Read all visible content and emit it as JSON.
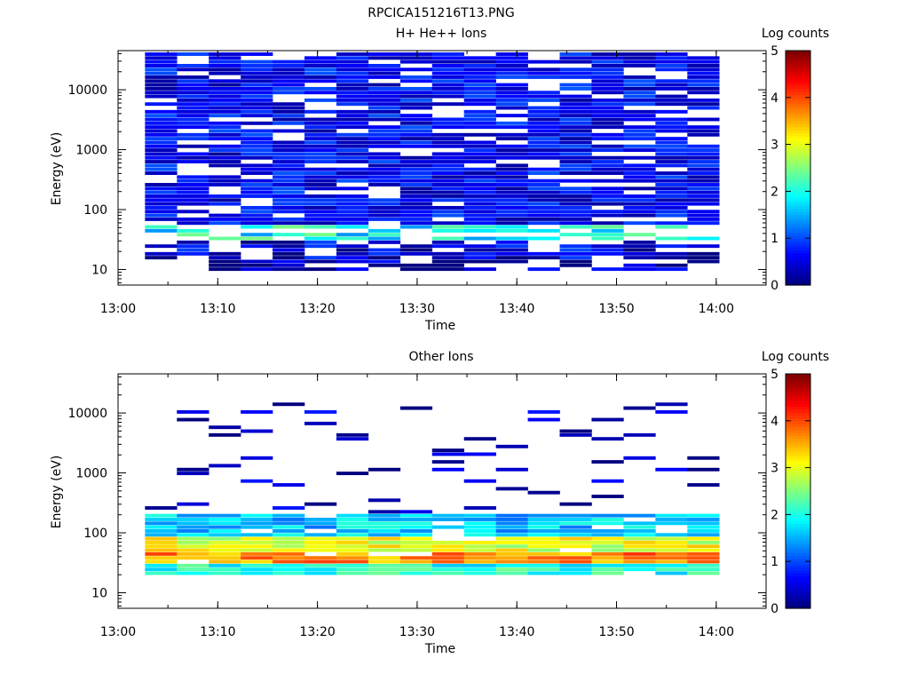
{
  "page_title": "RPCICA151216T13.PNG",
  "chart_data": [
    {
      "type": "heatmap",
      "title": "H+ He++ Ions",
      "xlabel": "Time",
      "ylabel": "Energy (eV)",
      "y_scale": "log",
      "xlim": [
        "13:00",
        "14:05"
      ],
      "ylim": [
        5.5,
        45000
      ],
      "x_ticks": [
        "13:00",
        "13:10",
        "13:20",
        "13:30",
        "13:40",
        "13:50",
        "14:00"
      ],
      "y_ticks": [
        "10",
        "100",
        "1000",
        "10000"
      ],
      "colorbar": {
        "label": "Log counts",
        "range": [
          0,
          5
        ],
        "ticks": [
          "0",
          "1",
          "2",
          "3",
          "4",
          "5"
        ]
      },
      "colormap": [
        "#00007f",
        "#0000ff",
        "#007fff",
        "#00ffff",
        "#7fff7f",
        "#ffff00",
        "#ff7f00",
        "#ff0000",
        "#7f0000"
      ],
      "time_bins": [
        "13:02.7",
        "13:05.9",
        "13:09.1",
        "13:12.3",
        "13:15.5",
        "13:18.7",
        "13:21.9",
        "13:25.1",
        "13:28.3",
        "13:31.5",
        "13:34.7",
        "13:37.9",
        "13:41.1",
        "13:44.3",
        "13:47.5",
        "13:50.7",
        "13:53.9",
        "13:57.1"
      ],
      "bands": [
        {
          "energy_range_ev": [
            9,
            15
          ],
          "level": 0.15,
          "note": "sparse dark blue blocks"
        },
        {
          "energy_range_ev": [
            15,
            30
          ],
          "level": 0.4
        },
        {
          "energy_range_ev": [
            30,
            55
          ],
          "level": 1.9,
          "note": "cyan/green enhancement"
        },
        {
          "energy_range_ev": [
            55,
            45000
          ],
          "level": 0.6,
          "note": "speckled blue background"
        }
      ]
    },
    {
      "type": "heatmap",
      "title": "Other Ions",
      "xlabel": "Time",
      "ylabel": "Energy (eV)",
      "y_scale": "log",
      "xlim": [
        "13:00",
        "14:05"
      ],
      "ylim": [
        5.5,
        45000
      ],
      "x_ticks": [
        "13:00",
        "13:10",
        "13:20",
        "13:30",
        "13:40",
        "13:50",
        "14:00"
      ],
      "y_ticks": [
        "10",
        "100",
        "1000",
        "10000"
      ],
      "colorbar": {
        "label": "Log counts",
        "range": [
          0,
          5
        ],
        "ticks": [
          "0",
          "1",
          "2",
          "3",
          "4",
          "5"
        ]
      },
      "colormap": [
        "#00007f",
        "#0000ff",
        "#007fff",
        "#00ffff",
        "#7fff7f",
        "#ffff00",
        "#ff7f00",
        "#ff0000",
        "#7f0000"
      ],
      "time_bins": [
        "13:02.7",
        "13:05.9",
        "13:09.1",
        "13:12.3",
        "13:15.5",
        "13:18.7",
        "13:21.9",
        "13:25.1",
        "13:28.3",
        "13:31.5",
        "13:34.7",
        "13:37.9",
        "13:41.1",
        "13:44.3",
        "13:47.5",
        "13:50.7",
        "13:53.9",
        "13:57.1"
      ],
      "bands": [
        {
          "energy_range_ev": [
            20,
            30
          ],
          "level": 2.0
        },
        {
          "energy_range_ev": [
            30,
            45
          ],
          "level": 3.7,
          "note": "orange/red peak"
        },
        {
          "energy_range_ev": [
            45,
            80
          ],
          "level": 3.0,
          "note": "yellow"
        },
        {
          "energy_range_ev": [
            80,
            200
          ],
          "level": 1.6,
          "note": "cyan to blue"
        },
        {
          "energy_range_ev": [
            200,
            20000
          ],
          "level": 0.3,
          "note": "sparse dark blue lines"
        }
      ]
    }
  ]
}
